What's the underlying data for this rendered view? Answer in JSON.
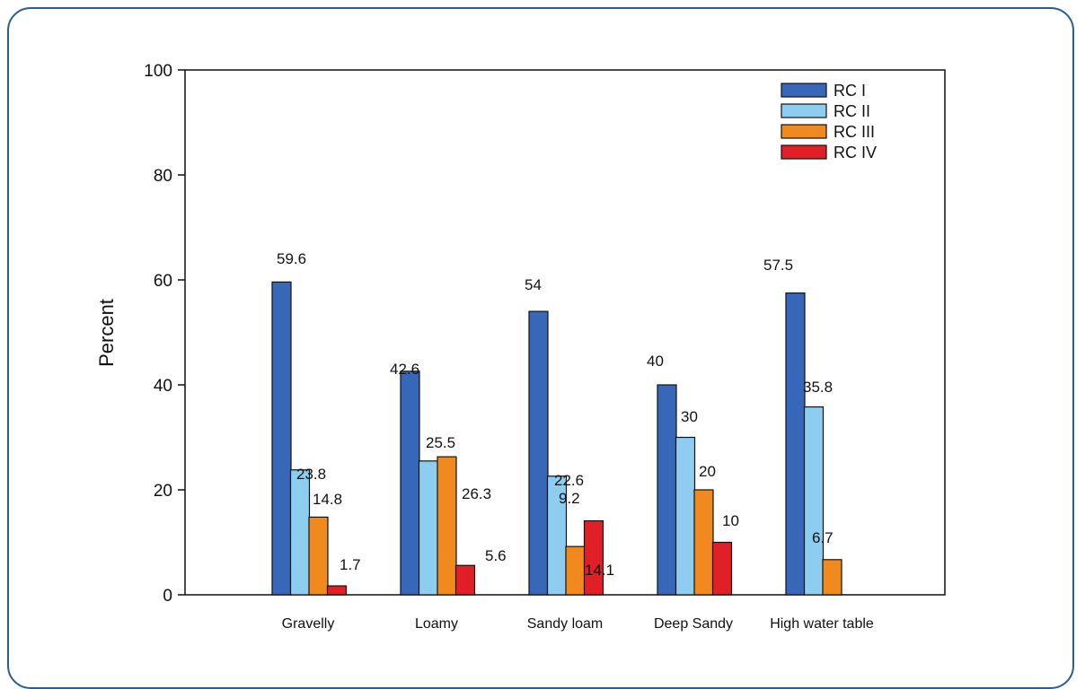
{
  "chart_data": {
    "type": "bar",
    "categories": [
      "Gravelly",
      "Loamy",
      "Sandy loam",
      "Deep Sandy",
      "High water table"
    ],
    "series": [
      {
        "name": "RC I",
        "values": [
          59.6,
          42.6,
          54,
          40,
          57.5
        ],
        "labels": [
          "59.6",
          "42.6",
          "54",
          "40",
          "57.5"
        ]
      },
      {
        "name": "RC II",
        "values": [
          23.8,
          25.5,
          22.6,
          30,
          35.8
        ],
        "labels": [
          "23.8",
          "25.5",
          "22.6",
          "30",
          "35.8"
        ]
      },
      {
        "name": "RC III",
        "values": [
          14.8,
          26.3,
          9.2,
          20,
          6.7
        ],
        "labels": [
          "14.8",
          "26.3",
          "9.2",
          "20",
          "6.7"
        ]
      },
      {
        "name": "RC IV",
        "values": [
          1.7,
          5.6,
          14.1,
          10,
          null
        ],
        "labels": [
          "1.7",
          "5.6",
          "14.1",
          "10",
          ""
        ]
      }
    ],
    "colors": [
      "#3767b8",
      "#8dcdf0",
      "#f08a1e",
      "#e02026"
    ],
    "ylabel": "Percent",
    "ylim": [
      0,
      100
    ],
    "yticks": [
      "0",
      "20",
      "40",
      "60",
      "80",
      "100"
    ],
    "legend_position": "top-right",
    "grid": false
  }
}
